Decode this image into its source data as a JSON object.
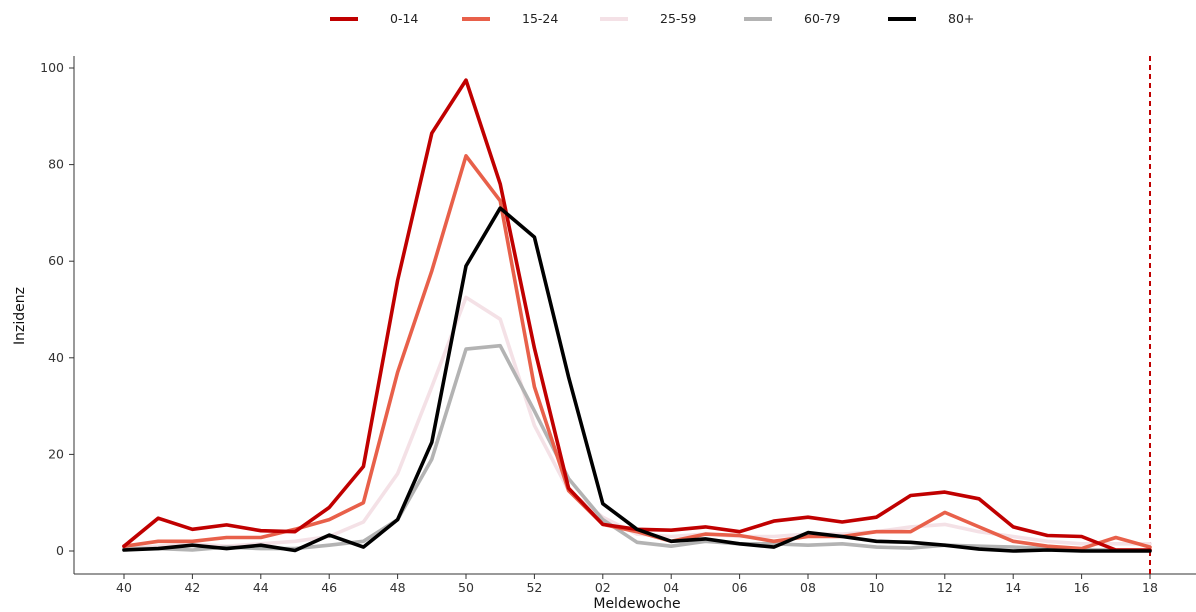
{
  "chart_data": {
    "type": "line",
    "xlabel": "Meldewoche",
    "ylabel": "Inzidenz",
    "ylim": [
      0,
      100
    ],
    "yticks": [
      0,
      20,
      40,
      60,
      80,
      100
    ],
    "x": [
      "40",
      "41",
      "42",
      "43",
      "44",
      "45",
      "46",
      "47",
      "48",
      "49",
      "50",
      "51",
      "52",
      "01",
      "02",
      "03",
      "04",
      "05",
      "06",
      "07",
      "08",
      "09",
      "10",
      "11",
      "12",
      "13",
      "14",
      "15",
      "16",
      "17",
      "18"
    ],
    "xtick_labels": [
      "40",
      "42",
      "44",
      "46",
      "48",
      "50",
      "52",
      "02",
      "04",
      "06",
      "08",
      "10",
      "12",
      "14",
      "16",
      "18"
    ],
    "legend_position": "top",
    "reference_line": {
      "x": "18",
      "style": "dashed",
      "color": "#c00000"
    },
    "series": [
      {
        "name": "0-14",
        "color": "#c00000",
        "values": [
          1.0,
          6.8,
          4.5,
          5.4,
          4.2,
          4.0,
          9.0,
          17.5,
          56.0,
          86.5,
          97.5,
          76.0,
          42.0,
          13.0,
          5.5,
          4.5,
          4.3,
          5.0,
          4.0,
          6.2,
          7.0,
          6.0,
          7.0,
          11.5,
          12.2,
          10.8,
          5.0,
          3.2,
          3.0,
          0.2,
          0.2
        ]
      },
      {
        "name": "15-24",
        "color": "#e8604a",
        "values": [
          1.0,
          2.0,
          2.0,
          2.8,
          2.8,
          4.5,
          6.5,
          10.0,
          37.0,
          58.0,
          81.8,
          72.5,
          34.0,
          12.5,
          5.5,
          4.0,
          2.0,
          3.5,
          3.2,
          2.0,
          3.0,
          3.0,
          4.0,
          4.0,
          8.0,
          5.0,
          2.0,
          1.0,
          0.5,
          2.8,
          0.8
        ]
      },
      {
        "name": "25-59",
        "color": "#f4e1e6",
        "values": [
          0.5,
          1.0,
          1.5,
          1.0,
          1.5,
          2.0,
          3.0,
          6.0,
          16.0,
          34.0,
          52.5,
          48.0,
          26.0,
          12.5,
          7.0,
          3.5,
          3.0,
          3.5,
          3.0,
          3.0,
          3.5,
          3.5,
          4.0,
          5.0,
          5.5,
          4.0,
          3.0,
          2.0,
          1.5,
          1.5,
          1.5
        ]
      },
      {
        "name": "60-79",
        "color": "#b3b3b3",
        "values": [
          0.5,
          0.5,
          0.2,
          0.8,
          0.5,
          0.5,
          1.2,
          2.0,
          6.5,
          19.0,
          41.8,
          42.5,
          29.0,
          15.0,
          6.5,
          1.8,
          1.0,
          2.0,
          1.5,
          1.5,
          1.2,
          1.5,
          0.8,
          0.6,
          1.2,
          1.0,
          0.8,
          0.5,
          0.3,
          0.2,
          0.2
        ]
      },
      {
        "name": "80+",
        "color": "#000000",
        "values": [
          0.2,
          0.5,
          1.2,
          0.5,
          1.2,
          0.1,
          3.3,
          0.8,
          6.5,
          22.5,
          59.0,
          71.0,
          65.0,
          36.0,
          9.8,
          4.5,
          2.0,
          2.5,
          1.5,
          0.8,
          3.8,
          3.0,
          2.0,
          1.8,
          1.2,
          0.4,
          0.0,
          0.2,
          0.0,
          0.0,
          0.0
        ]
      }
    ]
  }
}
